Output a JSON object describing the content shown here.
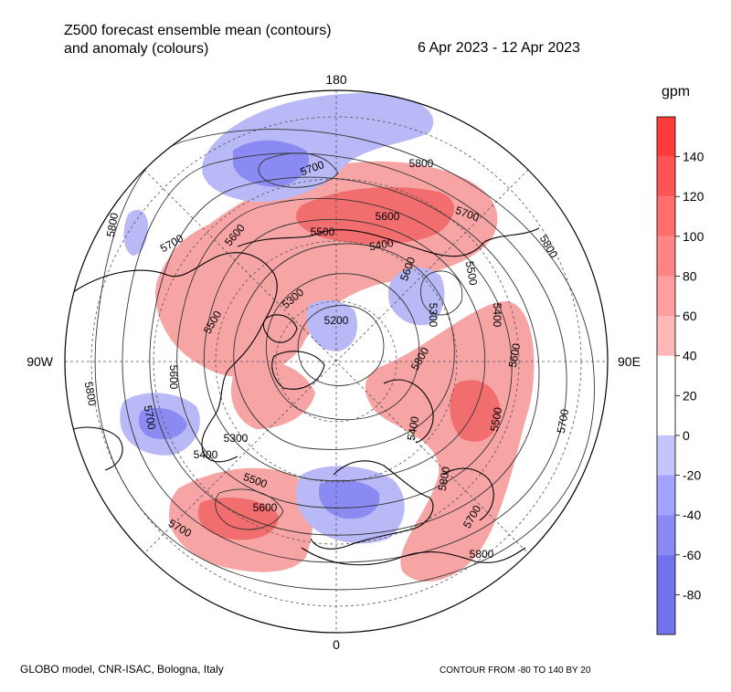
{
  "title": {
    "line1": "Z500 forecast ensemble mean (contours)",
    "line2": "and anomaly (colours)"
  },
  "date_range": "6 Apr 2023 - 12 Apr 2023",
  "colorbar": {
    "unit": "gpm",
    "tick_labels": [
      "140",
      "120",
      "100",
      "80",
      "60",
      "40",
      "20",
      "0",
      "-20",
      "-40",
      "-60",
      "-80"
    ],
    "band_colors": [
      "#ff3b3b",
      "#ff5454",
      "#ff6d6d",
      "#ff8585",
      "#ff9e9e",
      "#ffb7b7",
      "#ffffff",
      "#ffffff",
      "#c4c4ff",
      "#a3a3ff",
      "#8a8af5",
      "#7272ee"
    ]
  },
  "map": {
    "lon_labels": {
      "top": "180",
      "left": "90W",
      "right": "90E",
      "bottom": "0"
    },
    "contour_labels": [
      "5800",
      "5700",
      "5600",
      "5500",
      "5400",
      "5300",
      "5200",
      "5800",
      "5700",
      "5600",
      "5500",
      "5400",
      "5300",
      "5800",
      "5700",
      "5600",
      "5500",
      "5400",
      "5800",
      "5700",
      "5600",
      "5500",
      "5400",
      "5300",
      "5800",
      "5700",
      "5600",
      "5800",
      "5700",
      "5800",
      "5700",
      "5600",
      "5500"
    ],
    "anomaly_colors": {
      "positive": "#f26a6a",
      "positive_light": "#f8a5a5",
      "negative": "#7d7df0",
      "negative_light": "#b8b8f7"
    }
  },
  "footer": {
    "left": "GLOBO model, CNR-ISAC, Bologna, Italy",
    "right": "CONTOUR FROM -80 TO 140 BY 20"
  }
}
